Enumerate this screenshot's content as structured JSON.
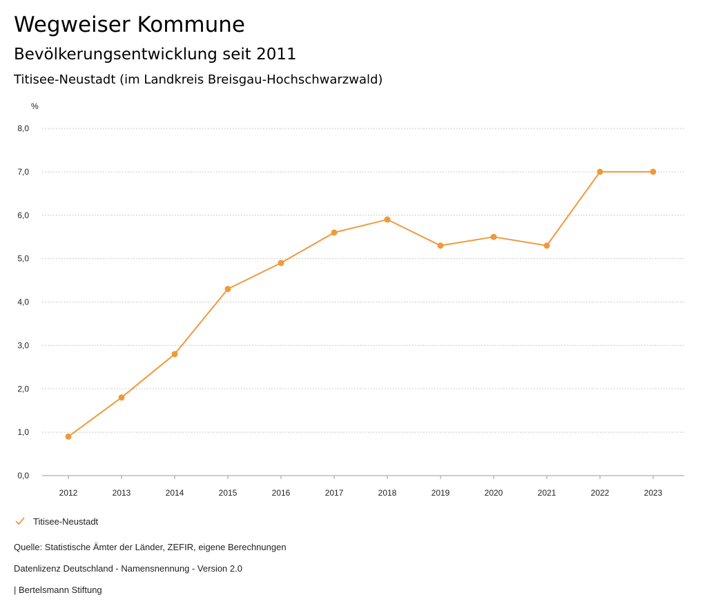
{
  "header": {
    "title": "Wegweiser Kommune",
    "subtitle": "Bevölkerungsentwicklung seit 2011",
    "region": "Titisee-Neustadt (im Landkreis Breisgau-Hochschwarzwald)"
  },
  "chart_data": {
    "type": "line",
    "y_unit": "%",
    "categories": [
      "2012",
      "2013",
      "2014",
      "2015",
      "2016",
      "2017",
      "2018",
      "2019",
      "2020",
      "2021",
      "2022",
      "2023"
    ],
    "series": [
      {
        "name": "Titisee-Neustadt",
        "values": [
          0.9,
          1.8,
          2.8,
          4.3,
          4.9,
          5.6,
          5.9,
          5.3,
          5.5,
          5.3,
          7.0,
          7.0
        ],
        "color": "#f0993a"
      }
    ],
    "ylim": [
      0,
      8
    ],
    "y_ticks": [
      "0,0",
      "1,0",
      "2,0",
      "3,0",
      "4,0",
      "5,0",
      "6,0",
      "7,0",
      "8,0"
    ],
    "grid": true,
    "legend_position": "bottom-left"
  },
  "footer": {
    "source": "Quelle: Statistische Ämter der Länder, ZEFIR, eigene Berechnungen",
    "license": "Datenlizenz Deutschland - Namensnennung - Version 2.0",
    "publisher": "| Bertelsmann Stiftung"
  }
}
